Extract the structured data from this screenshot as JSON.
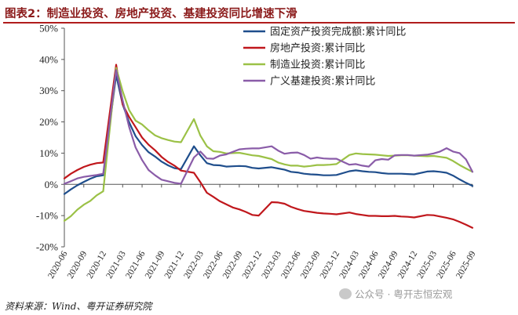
{
  "header": {
    "title": "图表2：制造业投资、房地产投资、基建投资同比增速下滑"
  },
  "footer": {
    "source": "资料来源：Wind、粤开证券研究院",
    "watermark": "公众号 · 粤开志恒宏观"
  },
  "chart_data": {
    "type": "line",
    "title": "图表2：制造业投资、房地产投资、基建投资同比增速下滑",
    "ylim": [
      -20,
      50
    ],
    "yticks": [
      -20,
      -10,
      0,
      10,
      20,
      30,
      40,
      50
    ],
    "ytick_labels": [
      "-20%",
      "-10%",
      "0%",
      "10%",
      "20%",
      "30%",
      "40%",
      "50%"
    ],
    "xtick_labels": [
      "2020-06",
      "2020-09",
      "2020-12",
      "2021-03",
      "2021-06",
      "2021-09",
      "2021-12",
      "2022-03",
      "2022-06",
      "2022-09",
      "2022-12",
      "2023-03",
      "2023-06",
      "2023-09",
      "2023-12",
      "2024-03",
      "2024-06",
      "2024-09",
      "2024-12",
      "2025-03",
      "2025-06",
      "2025-09"
    ],
    "legend_position": "top-right",
    "grid": false,
    "series": [
      {
        "name": "固定资产投资完成额:累计同比",
        "color": "#1f4e8c",
        "x": [
          "2020-06",
          "2020-07",
          "2020-08",
          "2020-09",
          "2020-10",
          "2020-11",
          "2020-12",
          "2021-02",
          "2021-03",
          "2021-04",
          "2021-05",
          "2021-06",
          "2021-07",
          "2021-08",
          "2021-09",
          "2021-10",
          "2021-11",
          "2021-12",
          "2022-02",
          "2022-03",
          "2022-04",
          "2022-05",
          "2022-06",
          "2022-07",
          "2022-08",
          "2022-09",
          "2022-10",
          "2022-11",
          "2022-12",
          "2023-02",
          "2023-03",
          "2023-04",
          "2023-05",
          "2023-06",
          "2023-07",
          "2023-08",
          "2023-09",
          "2023-10",
          "2023-11",
          "2023-12",
          "2024-02",
          "2024-03",
          "2024-04",
          "2024-05",
          "2024-06",
          "2024-07",
          "2024-08",
          "2024-09",
          "2024-10",
          "2024-11",
          "2024-12",
          "2025-02",
          "2025-03",
          "2025-04",
          "2025-05",
          "2025-06",
          "2025-07",
          "2025-08",
          "2025-09"
        ],
        "values": [
          -3.1,
          -1.6,
          -0.3,
          0.8,
          1.8,
          2.6,
          2.9,
          35.0,
          25.6,
          19.9,
          15.4,
          12.6,
          10.3,
          8.9,
          7.3,
          6.1,
          5.2,
          4.9,
          12.2,
          9.3,
          6.8,
          6.2,
          6.1,
          5.7,
          5.8,
          5.9,
          5.8,
          5.3,
          5.1,
          5.5,
          5.1,
          4.7,
          4.0,
          3.8,
          3.4,
          3.2,
          3.1,
          2.9,
          2.9,
          3.0,
          4.2,
          4.5,
          4.2,
          4.0,
          3.9,
          3.6,
          3.4,
          3.4,
          3.4,
          3.3,
          3.2,
          4.1,
          4.2,
          4.0,
          3.7,
          2.8,
          1.6,
          0.5,
          -0.5
        ]
      },
      {
        "name": "房地产投资:累计同比",
        "color": "#c0171c",
        "x": [
          "2020-06",
          "2020-07",
          "2020-08",
          "2020-09",
          "2020-10",
          "2020-11",
          "2020-12",
          "2021-02",
          "2021-03",
          "2021-04",
          "2021-05",
          "2021-06",
          "2021-07",
          "2021-08",
          "2021-09",
          "2021-10",
          "2021-11",
          "2021-12",
          "2022-02",
          "2022-03",
          "2022-04",
          "2022-05",
          "2022-06",
          "2022-07",
          "2022-08",
          "2022-09",
          "2022-10",
          "2022-11",
          "2022-12",
          "2023-02",
          "2023-03",
          "2023-04",
          "2023-05",
          "2023-06",
          "2023-07",
          "2023-08",
          "2023-09",
          "2023-10",
          "2023-11",
          "2023-12",
          "2024-02",
          "2024-03",
          "2024-04",
          "2024-05",
          "2024-06",
          "2024-07",
          "2024-08",
          "2024-09",
          "2024-10",
          "2024-11",
          "2024-12",
          "2025-02",
          "2025-03",
          "2025-04",
          "2025-05",
          "2025-06",
          "2025-07",
          "2025-08",
          "2025-09"
        ],
        "values": [
          1.9,
          3.4,
          4.6,
          5.6,
          6.3,
          6.8,
          7.0,
          38.3,
          25.6,
          21.6,
          18.3,
          15.0,
          12.7,
          10.9,
          8.8,
          7.2,
          6.0,
          4.4,
          3.7,
          0.7,
          -2.7,
          -4.0,
          -5.4,
          -6.4,
          -7.4,
          -8.0,
          -8.8,
          -9.8,
          -10.0,
          -5.7,
          -5.8,
          -6.2,
          -7.2,
          -7.9,
          -8.5,
          -8.8,
          -9.1,
          -9.3,
          -9.4,
          -9.6,
          -9.0,
          -9.5,
          -9.8,
          -10.1,
          -10.1,
          -10.2,
          -10.2,
          -10.1,
          -10.3,
          -10.4,
          -10.6,
          -9.8,
          -9.9,
          -10.3,
          -10.7,
          -11.2,
          -12.0,
          -12.9,
          -13.9
        ]
      },
      {
        "name": "制造业投资:累计同比",
        "color": "#9bc146",
        "x": [
          "2020-06",
          "2020-07",
          "2020-08",
          "2020-09",
          "2020-10",
          "2020-11",
          "2020-12",
          "2021-02",
          "2021-03",
          "2021-04",
          "2021-05",
          "2021-06",
          "2021-07",
          "2021-08",
          "2021-09",
          "2021-10",
          "2021-11",
          "2021-12",
          "2022-02",
          "2022-03",
          "2022-04",
          "2022-05",
          "2022-06",
          "2022-07",
          "2022-08",
          "2022-09",
          "2022-10",
          "2022-11",
          "2022-12",
          "2023-02",
          "2023-03",
          "2023-04",
          "2023-05",
          "2023-06",
          "2023-07",
          "2023-08",
          "2023-09",
          "2023-10",
          "2023-11",
          "2023-12",
          "2024-02",
          "2024-03",
          "2024-04",
          "2024-05",
          "2024-06",
          "2024-07",
          "2024-08",
          "2024-09",
          "2024-10",
          "2024-11",
          "2024-12",
          "2025-02",
          "2025-03",
          "2025-04",
          "2025-05",
          "2025-06",
          "2025-07",
          "2025-08",
          "2025-09"
        ],
        "values": [
          -11.7,
          -10.2,
          -8.1,
          -6.5,
          -5.3,
          -3.5,
          -2.2,
          37.3,
          29.8,
          23.8,
          20.4,
          19.2,
          17.3,
          15.7,
          14.8,
          14.2,
          13.7,
          13.5,
          20.9,
          15.6,
          12.2,
          10.6,
          10.4,
          9.9,
          10.0,
          10.1,
          9.7,
          9.3,
          9.1,
          8.1,
          7.0,
          6.4,
          6.0,
          6.0,
          5.7,
          5.9,
          6.2,
          6.2,
          6.3,
          6.5,
          9.4,
          9.9,
          9.7,
          9.6,
          9.5,
          9.3,
          9.1,
          9.2,
          9.3,
          9.3,
          9.2,
          9.0,
          9.1,
          8.8,
          8.5,
          7.5,
          6.2,
          5.1,
          4.0
        ]
      },
      {
        "name": "广义基建投资:累计同比",
        "color": "#8a5ca8",
        "x": [
          "2020-06",
          "2020-07",
          "2020-08",
          "2020-09",
          "2020-10",
          "2020-11",
          "2020-12",
          "2021-02",
          "2021-03",
          "2021-04",
          "2021-05",
          "2021-06",
          "2021-07",
          "2021-08",
          "2021-09",
          "2021-10",
          "2021-11",
          "2021-12",
          "2022-02",
          "2022-03",
          "2022-04",
          "2022-05",
          "2022-06",
          "2022-07",
          "2022-08",
          "2022-09",
          "2022-10",
          "2022-11",
          "2022-12",
          "2023-02",
          "2023-03",
          "2023-04",
          "2023-05",
          "2023-06",
          "2023-07",
          "2023-08",
          "2023-09",
          "2023-10",
          "2023-11",
          "2023-12",
          "2024-02",
          "2024-03",
          "2024-04",
          "2024-05",
          "2024-06",
          "2024-07",
          "2024-08",
          "2024-09",
          "2024-10",
          "2024-11",
          "2024-12",
          "2025-02",
          "2025-03",
          "2025-04",
          "2025-05",
          "2025-06",
          "2025-07",
          "2025-08",
          "2025-09"
        ],
        "values": [
          0.2,
          1.0,
          1.9,
          2.4,
          2.7,
          3.0,
          3.4,
          36.6,
          26.9,
          18.4,
          11.8,
          7.8,
          4.6,
          2.9,
          1.5,
          1.0,
          0.5,
          0.2,
          8.6,
          10.5,
          8.3,
          8.2,
          9.2,
          9.6,
          10.4,
          11.2,
          11.4,
          11.5,
          11.5,
          12.2,
          10.8,
          9.8,
          10.1,
          10.2,
          9.4,
          8.2,
          8.6,
          8.3,
          8.2,
          8.2,
          6.3,
          6.5,
          6.0,
          5.7,
          7.7,
          8.1,
          7.9,
          9.3,
          9.4,
          9.4,
          9.2,
          9.5,
          9.9,
          10.5,
          11.6,
          10.5,
          10.0,
          8.0,
          4.0
        ]
      }
    ]
  }
}
